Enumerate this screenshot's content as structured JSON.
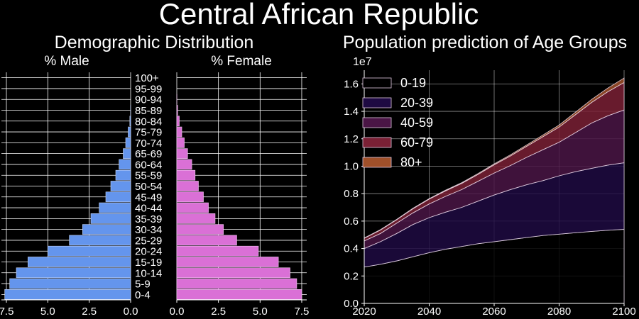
{
  "title": "Central African Republic",
  "chart_data": [
    {
      "type": "bar",
      "orientation": "horizontal",
      "group_title": "Demographic Distribution",
      "title": "% Male",
      "color": "#6495ED",
      "categories": [
        "0-4",
        "5-9",
        "10-14",
        "15-19",
        "20-24",
        "25-29",
        "30-34",
        "35-39",
        "40-44",
        "45-49",
        "50-54",
        "55-59",
        "60-64",
        "65-69",
        "70-74",
        "75-79",
        "80-84",
        "85-89",
        "90-94",
        "95-99",
        "100+"
      ],
      "values": [
        7.6,
        7.3,
        6.9,
        6.2,
        5.0,
        3.7,
        2.9,
        2.4,
        1.9,
        1.5,
        1.2,
        0.9,
        0.7,
        0.45,
        0.3,
        0.15,
        0.05,
        0.01,
        0,
        0,
        0
      ],
      "xticks": [
        "7.5",
        "5.0",
        "2.5",
        "0.0"
      ],
      "xlim": [
        7.8,
        0
      ],
      "grid": true
    },
    {
      "type": "bar",
      "orientation": "horizontal",
      "title": "% Female",
      "color": "#DA70D6",
      "categories": [
        "0-4",
        "5-9",
        "10-14",
        "15-19",
        "20-24",
        "25-29",
        "30-34",
        "35-39",
        "40-44",
        "45-49",
        "50-54",
        "55-59",
        "60-64",
        "65-69",
        "70-74",
        "75-79",
        "80-84",
        "85-89",
        "90-94",
        "95-99",
        "100+"
      ],
      "values": [
        7.5,
        7.2,
        6.8,
        6.1,
        4.9,
        3.6,
        2.8,
        2.3,
        1.9,
        1.6,
        1.3,
        1.1,
        0.9,
        0.65,
        0.45,
        0.3,
        0.15,
        0.05,
        0.01,
        0,
        0
      ],
      "xticks": [
        "0.0",
        "2.5",
        "5.0",
        "7.5"
      ],
      "xlim": [
        0,
        7.8
      ],
      "grid": true
    },
    {
      "type": "area",
      "stacked": true,
      "title": "Population prediction of Age Groups",
      "offset_label": "1e7",
      "x": [
        2020,
        2025,
        2030,
        2035,
        2040,
        2045,
        2050,
        2055,
        2060,
        2065,
        2070,
        2075,
        2080,
        2085,
        2090,
        2095,
        2100
      ],
      "series": [
        {
          "name": "0-19",
          "color": "#000000",
          "values": [
            0.265,
            0.285,
            0.31,
            0.34,
            0.37,
            0.395,
            0.415,
            0.435,
            0.45,
            0.465,
            0.48,
            0.495,
            0.505,
            0.515,
            0.525,
            0.533,
            0.54
          ]
        },
        {
          "name": "20-39",
          "color": "#1E0A42",
          "values": [
            0.135,
            0.165,
            0.2,
            0.235,
            0.255,
            0.27,
            0.285,
            0.31,
            0.34,
            0.365,
            0.385,
            0.4,
            0.425,
            0.445,
            0.46,
            0.475,
            0.485
          ]
        },
        {
          "name": "40-59",
          "color": "#4A1545",
          "values": [
            0.055,
            0.06,
            0.075,
            0.085,
            0.1,
            0.115,
            0.13,
            0.145,
            0.16,
            0.175,
            0.2,
            0.225,
            0.245,
            0.285,
            0.33,
            0.36,
            0.385
          ]
        },
        {
          "name": "60-79",
          "color": "#7A2035",
          "values": [
            0.02,
            0.025,
            0.025,
            0.03,
            0.035,
            0.04,
            0.045,
            0.05,
            0.06,
            0.07,
            0.08,
            0.095,
            0.11,
            0.13,
            0.15,
            0.175,
            0.2
          ]
        },
        {
          "name": "80+",
          "color": "#A0502A",
          "values": [
            0.002,
            0.003,
            0.003,
            0.004,
            0.004,
            0.005,
            0.005,
            0.006,
            0.007,
            0.008,
            0.01,
            0.012,
            0.015,
            0.018,
            0.022,
            0.027,
            0.033
          ]
        }
      ],
      "xticks": [
        2020,
        2040,
        2060,
        2080,
        2100
      ],
      "yticks": [
        0.0,
        0.2,
        0.4,
        0.6,
        0.8,
        1.0,
        1.2,
        1.4,
        1.6
      ],
      "xlim": [
        2020,
        2100
      ],
      "ylim": [
        0,
        1.7
      ],
      "legend": "top-left",
      "grid": true
    }
  ]
}
